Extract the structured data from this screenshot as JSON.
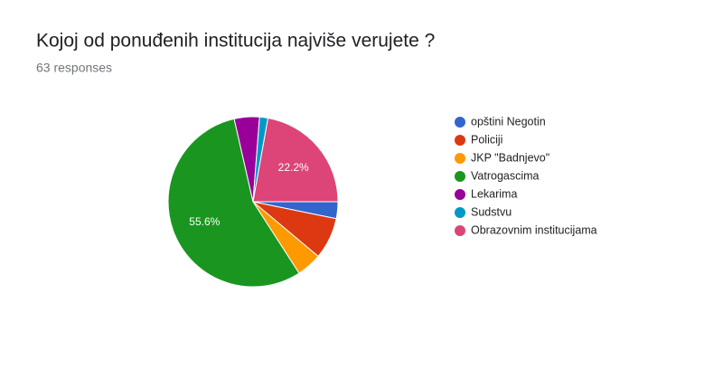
{
  "chart_data": {
    "type": "pie",
    "title": "Kojoj od ponuđenih institucija najviše verujete ?",
    "subtitle": "63 responses",
    "categories": [
      "opštini Negotin",
      "Policiji",
      "JKP \"Badnjevo\"",
      "Vatrogascima",
      "Lekarima",
      "Sudstvu",
      "Obrazovnim institucijama"
    ],
    "values": [
      3.2,
      7.9,
      4.8,
      55.6,
      4.8,
      1.6,
      22.2
    ],
    "value_labels": [
      null,
      null,
      null,
      "55.6%",
      null,
      null,
      "22.2%"
    ],
    "colors": [
      "#3366cc",
      "#dc3912",
      "#ff9900",
      "#1a9620",
      "#990099",
      "#0099c6",
      "#dd4477"
    ],
    "legend": "right"
  }
}
